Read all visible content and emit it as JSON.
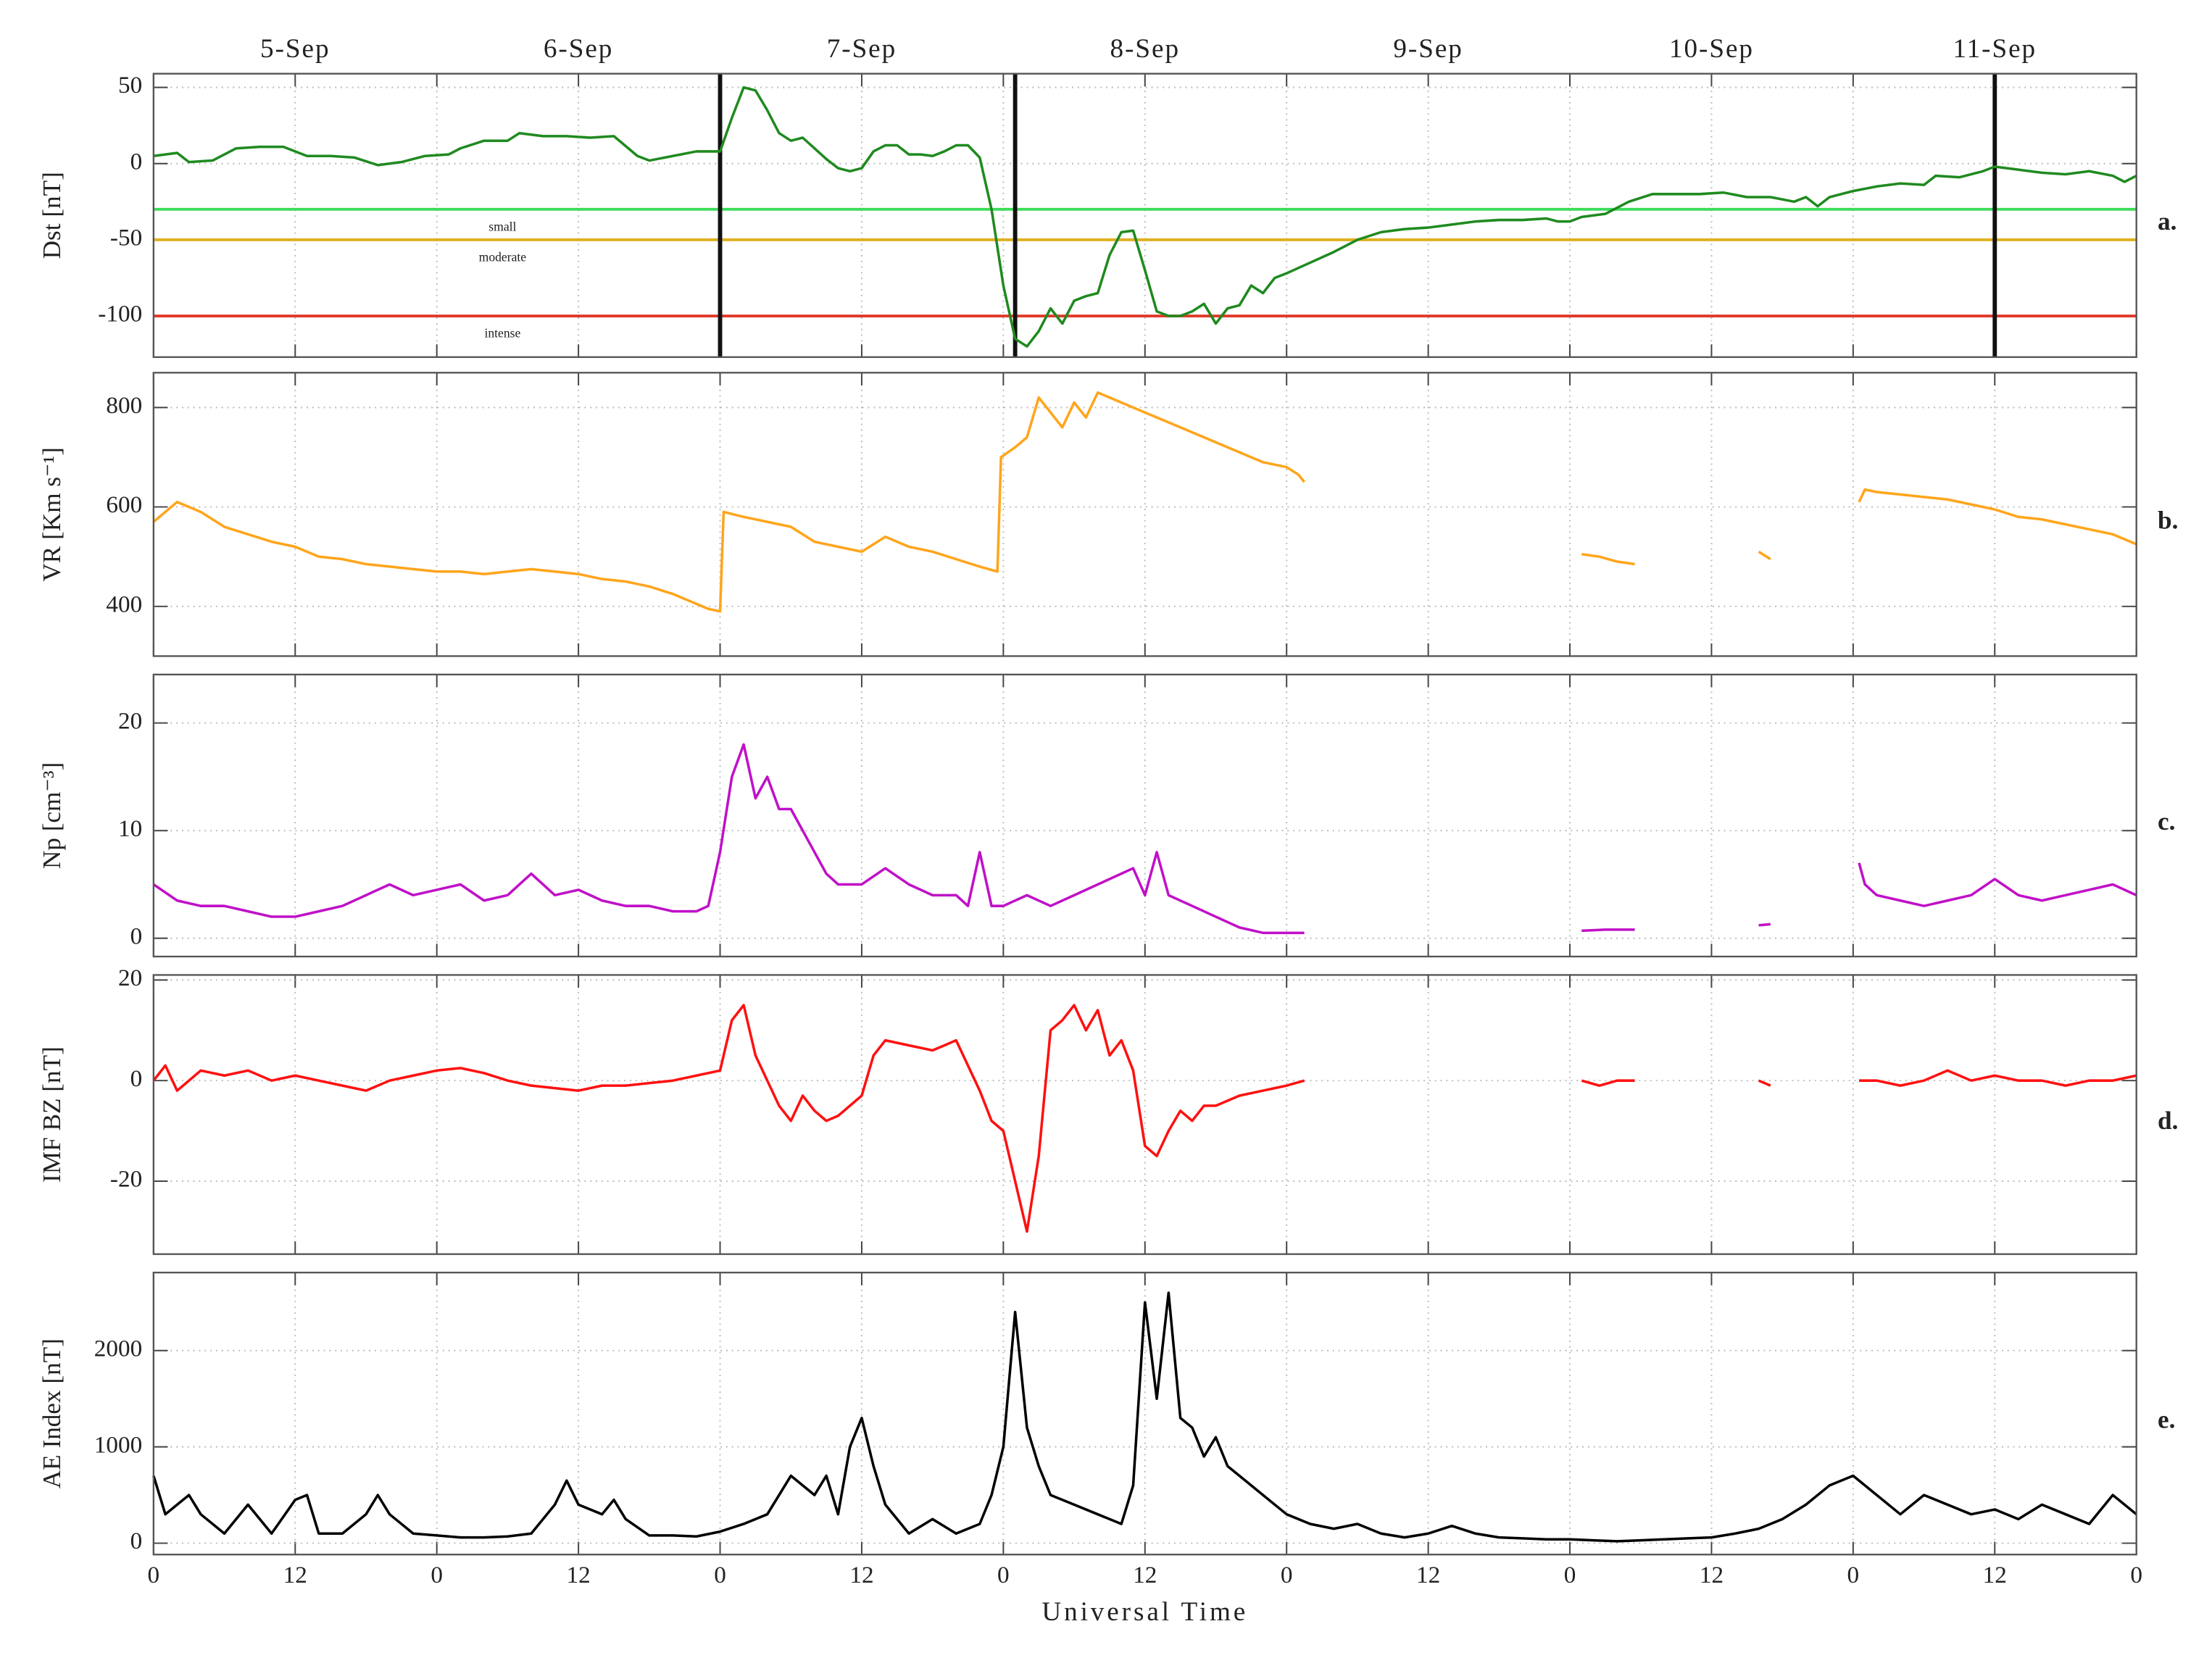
{
  "chart_data": [
    {
      "type": "line",
      "ylabel": "Dst [nT]",
      "panel_label": "a.",
      "color": "#1f8a1f",
      "grid": true,
      "xlim": [
        0,
        168
      ],
      "xticks": [
        0,
        12,
        24,
        36,
        48,
        60,
        72,
        84,
        96,
        108,
        120,
        132,
        144,
        156,
        168
      ],
      "x2ticks": [
        {
          "value": 12,
          "label": "5-Sep"
        },
        {
          "value": 36,
          "label": "6-Sep"
        },
        {
          "value": 60,
          "label": "7-Sep"
        },
        {
          "value": 84,
          "label": "8-Sep"
        },
        {
          "value": 108,
          "label": "9-Sep"
        },
        {
          "value": 132,
          "label": "10-Sep"
        },
        {
          "value": 156,
          "label": "11-Sep"
        }
      ],
      "ylim": [
        -127,
        59
      ],
      "yticks": [
        -100,
        -50,
        0,
        50
      ],
      "hlines": [
        {
          "value": -30,
          "label": "small",
          "color": "#3ddc5a"
        },
        {
          "value": -50,
          "label": "moderate",
          "color": "#e0b020"
        },
        {
          "value": -100,
          "label": "intense",
          "color": "#e03a2a"
        }
      ],
      "vlines": [
        48,
        73,
        156
      ],
      "x": [
        0,
        2,
        3,
        5,
        7,
        9,
        11,
        13,
        15,
        17,
        19,
        21,
        23,
        25,
        26,
        28,
        30,
        31,
        33,
        35,
        37,
        39,
        41,
        42,
        44,
        46,
        48,
        49,
        50,
        51,
        52,
        53,
        54,
        55,
        56,
        57,
        58,
        59,
        60,
        61,
        62,
        63,
        64,
        65,
        66,
        67,
        68,
        69,
        70,
        71,
        72,
        73,
        74,
        75,
        76,
        77,
        78,
        79,
        80,
        81,
        82,
        83,
        84,
        85,
        86,
        87,
        88,
        89,
        90,
        91,
        92,
        93,
        94,
        95,
        96,
        98,
        100,
        102,
        104,
        106,
        108,
        110,
        112,
        114,
        116,
        118,
        119,
        120,
        121,
        123,
        125,
        127,
        129,
        131,
        133,
        135,
        137,
        139,
        140,
        141,
        142,
        144,
        146,
        148,
        150,
        151,
        153,
        155,
        156,
        158,
        160,
        162,
        164,
        166,
        167,
        168
      ],
      "values": [
        5,
        7,
        1,
        2,
        10,
        11,
        11,
        5,
        5,
        4,
        -1,
        1,
        5,
        6,
        10,
        15,
        15,
        20,
        18,
        18,
        17,
        18,
        5,
        2,
        5,
        8,
        8,
        30,
        50,
        48,
        35,
        20,
        15,
        17,
        10,
        3,
        -3,
        -5,
        -3,
        8,
        12,
        12,
        6,
        6,
        5,
        8,
        12,
        12,
        4,
        -30,
        -80,
        -115,
        -120,
        -110,
        -95,
        -105,
        -90,
        -87,
        -85,
        -60,
        -45,
        -44,
        -70,
        -97,
        -100,
        -100,
        -97,
        -92,
        -105,
        -95,
        -93,
        -80,
        -85,
        -75,
        -72,
        -65,
        -58,
        -50,
        -45,
        -43,
        -42,
        -40,
        -38,
        -37,
        -37,
        -36,
        -38,
        -38,
        -35,
        -33,
        -25,
        -20,
        -20,
        -20,
        -19,
        -22,
        -22,
        -25,
        -22,
        -28,
        -22,
        -18,
        -15,
        -13,
        -14,
        -8,
        -9,
        -5,
        -2,
        -4,
        -6,
        -7,
        -5,
        -8,
        -12,
        -8
      ]
    },
    {
      "type": "line",
      "ylabel": "VR [Km s⁻¹]",
      "panel_label": "b.",
      "color": "#ffa51c",
      "grid": true,
      "xlim": [
        0,
        168
      ],
      "xticks": [
        0,
        12,
        24,
        36,
        48,
        60,
        72,
        84,
        96,
        108,
        120,
        132,
        144,
        156,
        168
      ],
      "ylim": [
        300,
        870
      ],
      "yticks": [
        400,
        600,
        800
      ],
      "x": [
        0,
        2,
        4,
        6,
        8,
        10,
        12,
        14,
        16,
        18,
        20,
        22,
        24,
        26,
        28,
        30,
        32,
        34,
        36,
        38,
        40,
        42,
        44,
        46,
        47,
        48,
        48.3,
        50,
        52,
        54,
        56,
        58,
        60,
        62,
        64,
        66,
        68,
        70,
        71.5,
        71.8,
        73,
        74,
        75,
        76,
        77,
        78,
        79,
        80,
        82,
        84,
        86,
        88,
        90,
        92,
        94,
        96,
        97,
        97.5,
        98,
        121,
        122.5,
        124,
        125.5,
        126,
        136,
        137,
        138,
        144.5,
        145,
        146,
        148,
        150,
        152,
        154,
        156,
        158,
        160,
        162,
        164,
        166,
        168
      ],
      "values": [
        570,
        610,
        590,
        560,
        545,
        530,
        520,
        500,
        495,
        485,
        480,
        475,
        470,
        470,
        465,
        470,
        475,
        470,
        465,
        455,
        450,
        440,
        425,
        405,
        395,
        390,
        590,
        580,
        570,
        560,
        530,
        520,
        510,
        540,
        520,
        510,
        495,
        480,
        470,
        700,
        720,
        740,
        820,
        790,
        760,
        810,
        780,
        830,
        810,
        790,
        770,
        750,
        730,
        710,
        690,
        680,
        665,
        650,
        null,
        505,
        500,
        490,
        485,
        null,
        510,
        495,
        null,
        610,
        635,
        630,
        625,
        620,
        615,
        605,
        595,
        580,
        575,
        565,
        555,
        545,
        525
      ]
    },
    {
      "type": "line",
      "ylabel": "Np [cm⁻³]",
      "panel_label": "c.",
      "color": "#c010c8",
      "grid": true,
      "xlim": [
        0,
        168
      ],
      "xticks": [
        0,
        12,
        24,
        36,
        48,
        60,
        72,
        84,
        96,
        108,
        120,
        132,
        144,
        156,
        168
      ],
      "ylim": [
        -1.7,
        24.5
      ],
      "yticks": [
        0,
        10,
        20
      ],
      "x": [
        0,
        2,
        4,
        6,
        8,
        10,
        12,
        14,
        16,
        18,
        20,
        22,
        24,
        26,
        28,
        30,
        32,
        34,
        36,
        38,
        40,
        42,
        44,
        46,
        47,
        48,
        49,
        50,
        51,
        52,
        53,
        54,
        55,
        56,
        57,
        58,
        60,
        62,
        64,
        66,
        68,
        69,
        70,
        71,
        72,
        74,
        76,
        78,
        80,
        82,
        83,
        84,
        85,
        86,
        88,
        90,
        92,
        94,
        96,
        97.5,
        98,
        121,
        123,
        125.5,
        126,
        136,
        137,
        138,
        144.5,
        145,
        146,
        148,
        150,
        152,
        154,
        156,
        158,
        160,
        162,
        164,
        166,
        168
      ],
      "values": [
        5,
        3.5,
        3,
        3,
        2.5,
        2,
        2,
        2.5,
        3,
        4,
        5,
        4,
        4.5,
        5,
        3.5,
        4,
        6,
        4,
        4.5,
        3.5,
        3,
        3,
        2.5,
        2.5,
        3,
        8,
        15,
        18,
        13,
        15,
        12,
        12,
        10,
        8,
        6,
        5,
        5,
        6.5,
        5,
        4,
        4,
        3,
        8,
        3,
        3,
        4,
        3,
        4,
        5,
        6,
        6.5,
        4,
        8,
        4,
        3,
        2,
        1,
        0.5,
        0.5,
        0.5,
        null,
        0.7,
        0.8,
        0.8,
        null,
        1.2,
        1.3,
        null,
        7,
        5,
        4,
        3.5,
        3,
        3.5,
        4,
        5.5,
        4,
        3.5,
        4,
        4.5,
        5,
        4
      ]
    },
    {
      "type": "line",
      "ylabel": "IMF BZ [nT]",
      "panel_label": "d.",
      "color": "#ff1010",
      "grid": true,
      "xlim": [
        0,
        168
      ],
      "xticks": [
        0,
        12,
        24,
        36,
        48,
        60,
        72,
        84,
        96,
        108,
        120,
        132,
        144,
        156,
        168
      ],
      "ylim": [
        -34.5,
        21
      ],
      "yticks": [
        -20,
        0,
        20
      ],
      "x": [
        0,
        1,
        2,
        4,
        6,
        8,
        10,
        12,
        14,
        16,
        18,
        20,
        22,
        24,
        26,
        28,
        30,
        32,
        34,
        36,
        38,
        40,
        42,
        44,
        46,
        48,
        49,
        50,
        51,
        52,
        53,
        54,
        55,
        56,
        57,
        58,
        59,
        60,
        61,
        62,
        64,
        66,
        67,
        68,
        69,
        70,
        71,
        72,
        73,
        74,
        75,
        76,
        77,
        78,
        79,
        80,
        81,
        82,
        83,
        84,
        85,
        86,
        87,
        88,
        89,
        90,
        92,
        94,
        96,
        97.5,
        98,
        121,
        122.5,
        124,
        125.5,
        126,
        136,
        137,
        138,
        144.5,
        146,
        148,
        150,
        152,
        154,
        156,
        158,
        160,
        162,
        164,
        166,
        168
      ],
      "values": [
        0,
        3,
        -2,
        2,
        1,
        2,
        0,
        1,
        0,
        -1,
        -2,
        0,
        1,
        2,
        2.5,
        1.5,
        0,
        -1,
        -1.5,
        -2,
        -1,
        -1,
        -0.5,
        0,
        1,
        2,
        12,
        15,
        5,
        0,
        -5,
        -8,
        -3,
        -6,
        -8,
        -7,
        -5,
        -3,
        5,
        8,
        7,
        6,
        7,
        8,
        3,
        -2,
        -8,
        -10,
        -20,
        -30,
        -15,
        10,
        12,
        15,
        10,
        14,
        5,
        8,
        2,
        -13,
        -15,
        -10,
        -6,
        -8,
        -5,
        -5,
        -3,
        -2,
        -1,
        0,
        null,
        0,
        -1,
        0,
        0,
        null,
        0,
        -1,
        null,
        0,
        0,
        -1,
        0,
        2,
        0,
        1,
        0,
        0,
        -1,
        0,
        0,
        1
      ]
    },
    {
      "type": "line",
      "ylabel": "AE Index [nT]",
      "panel_label": "e.",
      "color": "#000000",
      "grid": true,
      "xlabel": "Universal Time",
      "xlim": [
        0,
        168
      ],
      "xticks": [
        0,
        12,
        {
          "value": 24,
          "label": "0"
        },
        {
          "value": 36,
          "label": "12"
        },
        {
          "value": 48,
          "label": "0"
        },
        {
          "value": 60,
          "label": "12"
        },
        {
          "value": 72,
          "label": "0"
        },
        {
          "value": 84,
          "label": "12"
        },
        {
          "value": 96,
          "label": "0"
        },
        {
          "value": 108,
          "label": "12"
        },
        {
          "value": 120,
          "label": "0"
        },
        {
          "value": 132,
          "label": "12"
        },
        {
          "value": 144,
          "label": "0"
        },
        {
          "value": 156,
          "label": "12"
        },
        {
          "value": 168,
          "label": "0"
        }
      ],
      "ylim": [
        -118,
        2810
      ],
      "yticks": [
        0,
        1000,
        2000
      ],
      "x": [
        0,
        1,
        2,
        3,
        4,
        6,
        8,
        10,
        12,
        13,
        14,
        16,
        18,
        19,
        20,
        22,
        24,
        26,
        28,
        30,
        32,
        34,
        35,
        36,
        38,
        39,
        40,
        42,
        44,
        46,
        48,
        50,
        52,
        54,
        56,
        57,
        58,
        59,
        60,
        61,
        62,
        64,
        66,
        68,
        70,
        71,
        72,
        73,
        74,
        75,
        76,
        78,
        80,
        82,
        83,
        84,
        85,
        86,
        87,
        88,
        89,
        90,
        91,
        92,
        94,
        96,
        98,
        100,
        102,
        104,
        106,
        108,
        110,
        112,
        114,
        116,
        118,
        120,
        122,
        124,
        126,
        128,
        130,
        132,
        134,
        136,
        138,
        140,
        142,
        144,
        146,
        148,
        150,
        152,
        154,
        156,
        158,
        160,
        162,
        164,
        166,
        168
      ],
      "values": [
        700,
        300,
        400,
        500,
        300,
        100,
        400,
        100,
        450,
        500,
        100,
        100,
        300,
        500,
        300,
        100,
        80,
        60,
        60,
        70,
        100,
        400,
        650,
        400,
        300,
        450,
        250,
        80,
        80,
        70,
        120,
        200,
        300,
        700,
        500,
        700,
        300,
        1000,
        1300,
        800,
        400,
        100,
        250,
        100,
        200,
        500,
        1000,
        2400,
        1200,
        800,
        500,
        400,
        300,
        200,
        600,
        2500,
        1500,
        2600,
        1300,
        1200,
        900,
        1100,
        800,
        700,
        500,
        300,
        200,
        150,
        200,
        100,
        60,
        100,
        180,
        100,
        60,
        50,
        40,
        40,
        30,
        20,
        30,
        40,
        50,
        60,
        100,
        150,
        250,
        400,
        600,
        700,
        500,
        300,
        500,
        400,
        300,
        350,
        250,
        400,
        300,
        200,
        500,
        300
      ]
    }
  ]
}
